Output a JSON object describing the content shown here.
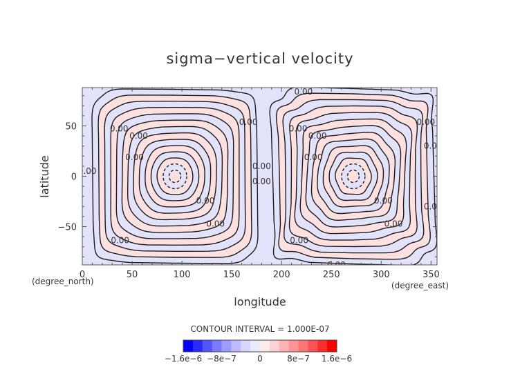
{
  "chart_data": {
    "type": "heatmap",
    "subtype": "filled-contour",
    "title": "sigma−vertical velocity",
    "xlabel": "longitude",
    "ylabel": "latitude",
    "x_unit": "(degree_east)",
    "y_unit": "(degree_north)",
    "xlim": [
      0,
      356
    ],
    "ylim": [
      -88,
      88
    ],
    "x_ticks": [
      0,
      50,
      100,
      150,
      200,
      250,
      300,
      350
    ],
    "x_tick_labels": [
      "0",
      "50",
      "100",
      "150",
      "200",
      "250",
      "300",
      "350"
    ],
    "y_ticks": [
      -50,
      0,
      50
    ],
    "y_tick_labels": [
      "−50",
      "0",
      "50"
    ],
    "contour_interval_text": "CONTOUR INTERVAL = 1.000E-07",
    "contour_interval": 1e-07,
    "vortex_centers": [
      {
        "lon": 93,
        "lat": 0,
        "sign": "negative"
      },
      {
        "lon": 272,
        "lat": 0,
        "sign": "negative"
      }
    ],
    "zero_contour_label": "0.00",
    "colorbar": {
      "range": [
        -1.6e-06,
        1.6e-06
      ],
      "tick_labels": [
        "−1.6e−6",
        "−8e−7",
        "0",
        "8e−7",
        "1.6e−6"
      ],
      "tick_values": [
        -1.6e-06,
        -8e-07,
        0,
        8e-07,
        1.6e-06
      ],
      "negative_colors": [
        "#0000ff",
        "#2a2aff",
        "#5454ff",
        "#7a7aff",
        "#9d9dff",
        "#bcbcff",
        "#d7d7ff"
      ],
      "neutral_colors": [
        "#eaeaff",
        "#ffeaea"
      ],
      "positive_colors": [
        "#ffd2d2",
        "#ffb4b4",
        "#ff9494",
        "#ff7474",
        "#ff5252",
        "#ff2e2e",
        "#ff0000"
      ]
    },
    "colors": {
      "background_positive": "#fde0e0",
      "background_negative": "#e2e2fb",
      "contour_line": "#1a1a1a",
      "text": "#333333"
    }
  }
}
